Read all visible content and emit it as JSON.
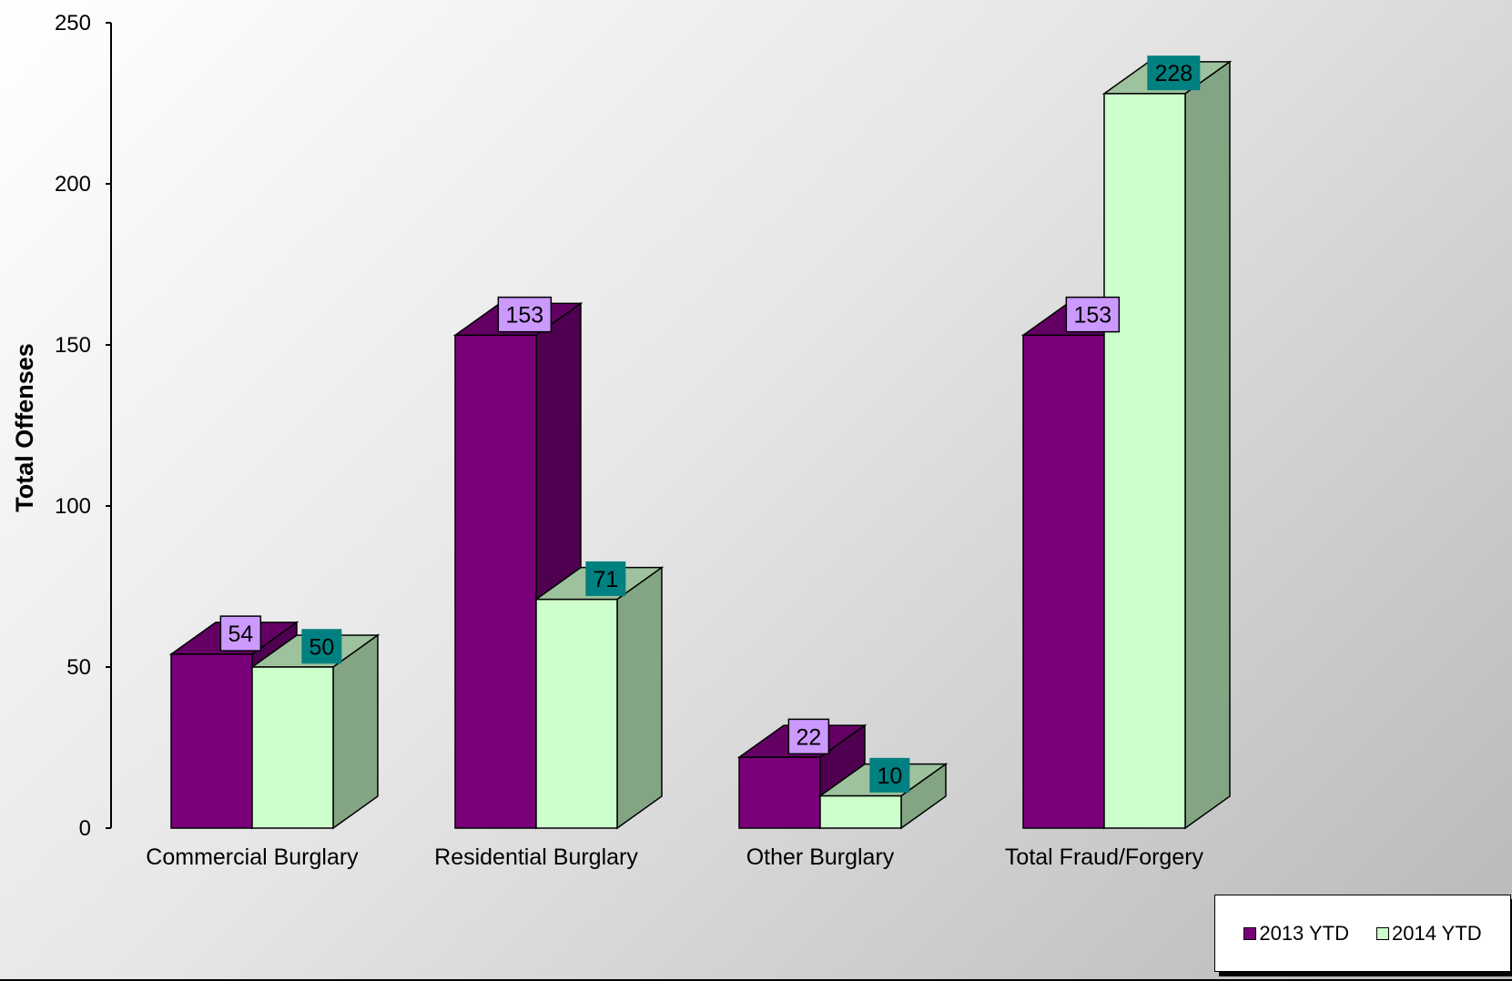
{
  "chart_data": {
    "type": "bar",
    "title": "",
    "xlabel": "",
    "ylabel": "Total Offenses",
    "ylim": [
      0,
      250
    ],
    "yticks": [
      0,
      50,
      100,
      150,
      200,
      250
    ],
    "categories": [
      "Commercial Burglary",
      "Residential Burglary",
      "Other Burglary",
      "Total Fraud/Forgery"
    ],
    "series": [
      {
        "name": "2013 YTD",
        "values": [
          54,
          153,
          22,
          153
        ],
        "color": "#7a007a",
        "side_color": "#500050",
        "top_color": "#640064",
        "label_bg": "#cc99ff"
      },
      {
        "name": "2014 YTD",
        "values": [
          50,
          71,
          10,
          228
        ],
        "color": "#ccffcc",
        "side_color": "#84a584",
        "top_color": "#9dc29d",
        "label_bg": "#008080"
      }
    ],
    "grid": false,
    "legend_position": "bottom-right",
    "style": "3d-clustered"
  }
}
